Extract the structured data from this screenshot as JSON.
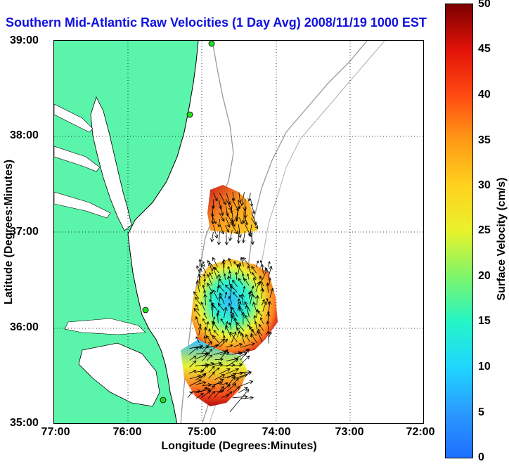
{
  "title": "Southern Mid-Atlantic Raw Velocities (1 Day Avg) 2008/11/19 1000 EST",
  "x_axis": {
    "label": "Longitude (Degrees:Minutes)",
    "ticks": [
      "77:00",
      "76:00",
      "75:00",
      "74:00",
      "73:00",
      "72:00"
    ]
  },
  "y_axis": {
    "label": "Latitude (Degrees:Minutes)",
    "ticks": [
      "39:00",
      "38:00",
      "37:00",
      "36:00",
      "35:00"
    ]
  },
  "colorbar": {
    "label": "Surface Velocity (cm/s)",
    "ticks": [
      "50",
      "45",
      "40",
      "35",
      "30",
      "25",
      "20",
      "15",
      "10",
      "5",
      "0"
    ],
    "range": [
      0,
      50
    ],
    "colors": [
      "#1e6fff",
      "#1fd6ff",
      "#7ff56a",
      "#e8f22a",
      "#ff9a16",
      "#e21208",
      "#7a0000"
    ]
  },
  "map": {
    "lon_range": [
      -77,
      -72
    ],
    "lat_range": [
      35,
      39
    ],
    "land_color": "#5af5aa",
    "grid": true,
    "stations": 4
  }
}
